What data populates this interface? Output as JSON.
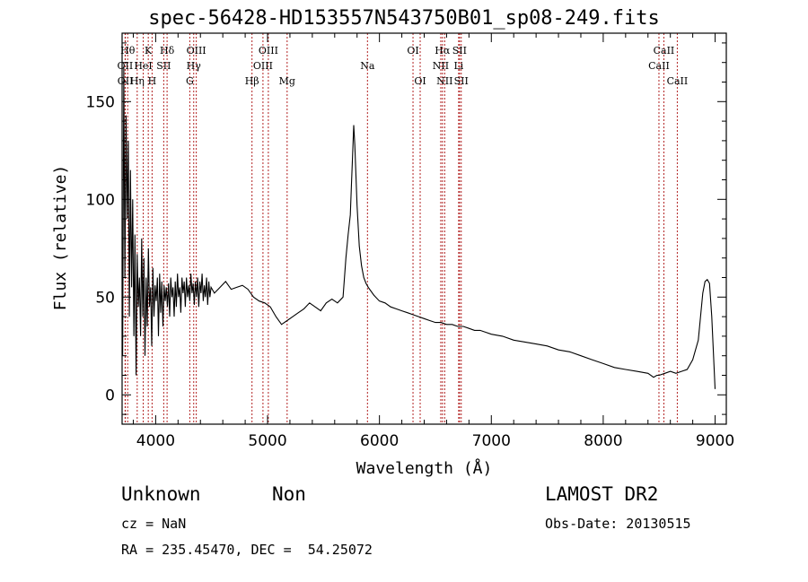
{
  "chart_data": {
    "type": "line",
    "title": "spec-56428-HD153557N543750B01_sp08-249.fits",
    "xlabel": "Wavelength (Å)",
    "ylabel": "Flux (relative)",
    "xlim": [
      3700,
      9100
    ],
    "ylim": [
      -15,
      185
    ],
    "xticks": [
      4000,
      5000,
      6000,
      7000,
      8000,
      9000
    ],
    "yticks": [
      0,
      50,
      100,
      150
    ],
    "grid": false,
    "line_color": "#000000",
    "marker_line_color": "#b22222",
    "series": [
      {
        "x": [
          3705,
          3715,
          3725,
          3735,
          3745,
          3755,
          3765,
          3775,
          3785,
          3795,
          3805,
          3815,
          3825,
          3835,
          3845,
          3855,
          3865,
          3875,
          3885,
          3895,
          3905,
          3915,
          3925,
          3935,
          3945,
          3955,
          3965,
          3975,
          3985,
          3995,
          4005,
          4015,
          4025,
          4035,
          4045,
          4055,
          4065,
          4075,
          4085,
          4095,
          4105,
          4115,
          4125,
          4135,
          4145,
          4155,
          4165,
          4175,
          4185,
          4195,
          4205,
          4215,
          4225,
          4235,
          4245,
          4255,
          4265,
          4275,
          4285,
          4295,
          4305,
          4315,
          4325,
          4335,
          4345,
          4355,
          4365,
          4375,
          4385,
          4395,
          4405,
          4415,
          4425,
          4435,
          4445,
          4455,
          4465,
          4475,
          4485,
          4495,
          4525,
          4575,
          4625,
          4675,
          4725,
          4775,
          4825,
          4875,
          4925,
          4975,
          5025,
          5075,
          5125,
          5175,
          5225,
          5275,
          5325,
          5375,
          5425,
          5475,
          5525,
          5575,
          5625,
          5675,
          5700,
          5720,
          5740,
          5750,
          5760,
          5770,
          5780,
          5790,
          5800,
          5810,
          5820,
          5840,
          5860,
          5880,
          5900,
          5950,
          6000,
          6050,
          6100,
          6150,
          6200,
          6250,
          6300,
          6350,
          6400,
          6450,
          6500,
          6550,
          6600,
          6650,
          6700,
          6750,
          6800,
          6850,
          6900,
          6950,
          7000,
          7100,
          7200,
          7300,
          7400,
          7500,
          7600,
          7700,
          7800,
          7900,
          8000,
          8100,
          8200,
          8300,
          8400,
          8450,
          8480,
          8500,
          8550,
          8600,
          8650,
          8700,
          8750,
          8800,
          8850,
          8870,
          8890,
          8910,
          8930,
          8950,
          8970,
          8990,
          9000
        ],
        "y": [
          20,
          168,
          60,
          143,
          90,
          130,
          40,
          115,
          55,
          100,
          30,
          82,
          10,
          72,
          45,
          60,
          30,
          80,
          40,
          70,
          20,
          60,
          35,
          75,
          45,
          55,
          25,
          65,
          40,
          56,
          48,
          60,
          30,
          62,
          42,
          58,
          35,
          56,
          48,
          55,
          45,
          57,
          40,
          60,
          50,
          55,
          40,
          58,
          45,
          62,
          50,
          55,
          42,
          60,
          52,
          58,
          45,
          60,
          50,
          56,
          48,
          62,
          52,
          57,
          46,
          58,
          50,
          60,
          45,
          58,
          52,
          62,
          48,
          56,
          50,
          60,
          46,
          58,
          50,
          55,
          52,
          55,
          58,
          54,
          55,
          56,
          54,
          50,
          48,
          47,
          45,
          40,
          36,
          38,
          40,
          42,
          44,
          47,
          45,
          43,
          47,
          49,
          47,
          50,
          70,
          82,
          92,
          108,
          122,
          138,
          128,
          112,
          97,
          86,
          76,
          66,
          60,
          57,
          55,
          51,
          48,
          47,
          45,
          44,
          43,
          42,
          41,
          40,
          39,
          38,
          37,
          37,
          36,
          36,
          35,
          35,
          34,
          33,
          33,
          32,
          31,
          30,
          28,
          27,
          26,
          25,
          23,
          22,
          20,
          18,
          16,
          14,
          13,
          12,
          11,
          9,
          10,
          10,
          11,
          12,
          11,
          12,
          13,
          18,
          28,
          40,
          52,
          58,
          59,
          57,
          40,
          15,
          3
        ]
      }
    ],
    "lines": [
      {
        "label": "OII",
        "wl": 3727,
        "row": 2
      },
      {
        "label": "OII",
        "wl": 3729,
        "row": 3
      },
      {
        "label": "Hθ",
        "wl": 3750,
        "row": 1
      },
      {
        "label": "Hη",
        "wl": 3835,
        "row": 3
      },
      {
        "label": "HeI",
        "wl": 3889,
        "row": 2
      },
      {
        "label": "K",
        "wl": 3934,
        "row": 1
      },
      {
        "label": "H",
        "wl": 3968,
        "row": 3
      },
      {
        "label": "SII",
        "wl": 4072,
        "row": 2
      },
      {
        "label": "Hδ",
        "wl": 4102,
        "row": 1
      },
      {
        "label": "G",
        "wl": 4305,
        "row": 3
      },
      {
        "label": "OIII",
        "wl": 4363,
        "row": 1
      },
      {
        "label": "Hγ",
        "wl": 4340,
        "row": 2
      },
      {
        "label": "Hβ",
        "wl": 4861,
        "row": 3
      },
      {
        "label": "OIII",
        "wl": 4959,
        "row": 2
      },
      {
        "label": "OIII",
        "wl": 5007,
        "row": 1
      },
      {
        "label": "Mg",
        "wl": 5175,
        "row": 3
      },
      {
        "label": "Na",
        "wl": 5893,
        "row": 2
      },
      {
        "label": "OI",
        "wl": 6300,
        "row": 1
      },
      {
        "label": "OI",
        "wl": 6364,
        "row": 3
      },
      {
        "label": "NII",
        "wl": 6548,
        "row": 2
      },
      {
        "label": "Hα",
        "wl": 6563,
        "row": 1
      },
      {
        "label": "NII",
        "wl": 6583,
        "row": 3
      },
      {
        "label": "Li",
        "wl": 6708,
        "row": 2
      },
      {
        "label": "SII",
        "wl": 6716,
        "row": 1
      },
      {
        "label": "SII",
        "wl": 6731,
        "row": 3
      },
      {
        "label": "CaII",
        "wl": 8498,
        "row": 2
      },
      {
        "label": "CaII",
        "wl": 8542,
        "row": 1
      },
      {
        "label": "CaII",
        "wl": 8662,
        "row": 3
      }
    ]
  },
  "info": {
    "class": "Unknown",
    "subclass": "Non",
    "survey": "LAMOST DR2",
    "cz": "cz = NaN",
    "obsdate": "Obs-Date: 20130515",
    "radec": "RA = 235.45470, DEC =  54.25072"
  }
}
